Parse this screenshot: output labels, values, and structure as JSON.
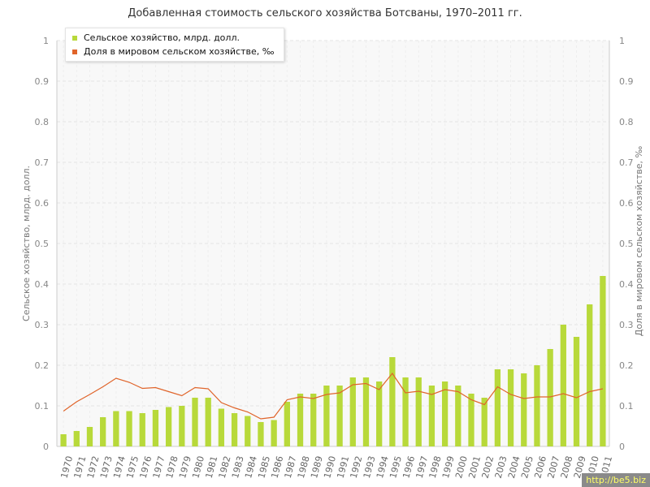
{
  "chart_data": {
    "type": "bar",
    "title": "Добавленная стоимость сельского хозяйства Ботсваны, 1970–2011 гг.",
    "ylabel": "Сельское хозяйство, млрд. долл.",
    "y2label": "Доля в мировом сельском хозяйстве, ‰",
    "ylim": [
      0,
      1
    ],
    "y2lim": [
      0,
      1
    ],
    "yticks": [
      "0",
      "0.1",
      "0.2",
      "0.3",
      "0.4",
      "0.5",
      "0.6",
      "0.7",
      "0.8",
      "0.9",
      "1"
    ],
    "grid": true,
    "legend_position": "top-left",
    "categories": [
      "1970",
      "1971",
      "1972",
      "1973",
      "1974",
      "1975",
      "1976",
      "1977",
      "1978",
      "1979",
      "1980",
      "1981",
      "1982",
      "1983",
      "1984",
      "1985",
      "1986",
      "1987",
      "1988",
      "1989",
      "1990",
      "1991",
      "1992",
      "1993",
      "1994",
      "1995",
      "1996",
      "1997",
      "1998",
      "1999",
      "2000",
      "2001",
      "2002",
      "2003",
      "2004",
      "2005",
      "2006",
      "2007",
      "2008",
      "2009",
      "2010",
      "2011"
    ],
    "series": [
      {
        "name": "Сельское хозяйство, млрд. долл.",
        "type": "bar",
        "axis": "left",
        "color": "#b8d93a",
        "values": [
          0.03,
          0.038,
          0.048,
          0.072,
          0.087,
          0.087,
          0.082,
          0.09,
          0.097,
          0.1,
          0.12,
          0.12,
          0.093,
          0.082,
          0.075,
          0.06,
          0.065,
          0.11,
          0.13,
          0.13,
          0.15,
          0.15,
          0.17,
          0.17,
          0.16,
          0.22,
          0.17,
          0.17,
          0.15,
          0.16,
          0.15,
          0.13,
          0.12,
          0.19,
          0.19,
          0.18,
          0.2,
          0.24,
          0.3,
          0.27,
          0.35,
          0.42
        ]
      },
      {
        "name": "Доля в мировом сельском хозяйстве, ‰",
        "type": "line",
        "axis": "right",
        "color": "#e0642a",
        "values": [
          0.087,
          0.11,
          0.128,
          0.147,
          0.168,
          0.158,
          0.143,
          0.145,
          0.135,
          0.125,
          0.145,
          0.142,
          0.108,
          0.095,
          0.085,
          0.068,
          0.072,
          0.115,
          0.122,
          0.118,
          0.128,
          0.132,
          0.152,
          0.155,
          0.14,
          0.18,
          0.132,
          0.136,
          0.128,
          0.14,
          0.135,
          0.115,
          0.103,
          0.147,
          0.128,
          0.118,
          0.122,
          0.122,
          0.13,
          0.12,
          0.135,
          0.142
        ]
      }
    ]
  },
  "watermark": "http://be5.biz"
}
